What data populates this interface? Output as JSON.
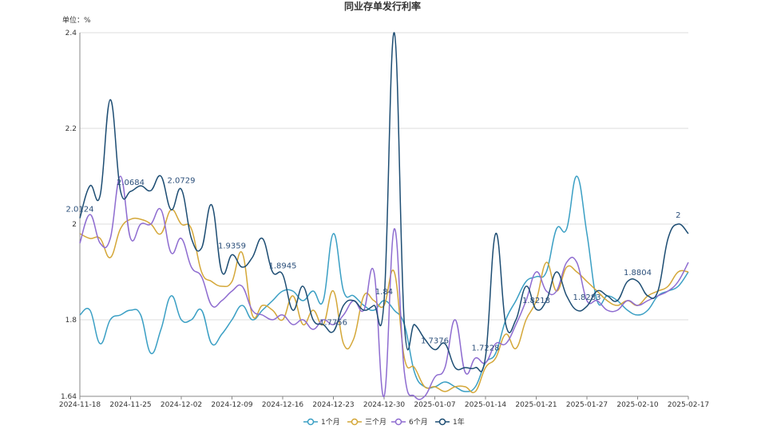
{
  "chart_data": {
    "type": "line",
    "title": "同业存单发行利率",
    "y_label": "单位：%",
    "categories": [
      "2024-11-18",
      null,
      null,
      null,
      null,
      "2024-11-25",
      null,
      null,
      null,
      null,
      "2024-12-02",
      null,
      null,
      null,
      null,
      "2024-12-09",
      null,
      null,
      null,
      null,
      "2024-12-16",
      null,
      null,
      null,
      null,
      "2024-12-23",
      null,
      null,
      null,
      null,
      "2024-12-30",
      null,
      null,
      null,
      null,
      "2025-01-07",
      null,
      null,
      null,
      null,
      "2025-01-14",
      null,
      null,
      null,
      null,
      "2025-01-21",
      null,
      null,
      null,
      null,
      "2025-01-27",
      null,
      null,
      null,
      null,
      "2025-02-10",
      null,
      null,
      null,
      null,
      "2025-02-17"
    ],
    "ylim": [
      1.64,
      2.4
    ],
    "yticks": [
      1.64,
      1.8,
      2,
      2.2,
      2.4
    ],
    "grid": true,
    "series": [
      {
        "name": "1个月",
        "color": "#3a9fc4",
        "values": [
          1.81,
          1.82,
          1.75,
          1.8,
          1.81,
          1.82,
          1.81,
          1.73,
          1.78,
          1.85,
          1.8,
          1.8,
          1.82,
          1.75,
          1.77,
          1.8,
          1.83,
          1.8,
          1.82,
          1.84,
          1.86,
          1.86,
          1.84,
          1.86,
          1.84,
          1.98,
          1.86,
          1.85,
          1.83,
          1.82,
          1.84,
          1.82,
          1.79,
          1.69,
          1.66,
          1.66,
          1.67,
          1.66,
          1.65,
          1.66,
          1.71,
          1.73,
          1.8,
          1.84,
          1.88,
          1.89,
          1.9,
          1.99,
          1.99,
          2.1,
          1.98,
          1.84,
          1.85,
          1.84,
          1.82,
          1.81,
          1.82,
          1.85,
          1.86,
          1.87,
          1.9
        ]
      },
      {
        "name": "三个月",
        "color": "#d4a738",
        "values": [
          1.98,
          1.97,
          1.97,
          1.93,
          1.99,
          2.01,
          2.01,
          2.0,
          1.98,
          2.03,
          2.0,
          1.99,
          1.9,
          1.88,
          1.87,
          1.88,
          1.94,
          1.81,
          1.83,
          1.82,
          1.8,
          1.85,
          1.79,
          1.82,
          1.79,
          1.86,
          1.75,
          1.76,
          1.85,
          1.84,
          1.83,
          1.9,
          1.72,
          1.7,
          1.66,
          1.66,
          1.65,
          1.66,
          1.66,
          1.65,
          1.7,
          1.72,
          1.77,
          1.74,
          1.8,
          1.84,
          1.92,
          1.86,
          1.91,
          1.9,
          1.88,
          1.86,
          1.84,
          1.83,
          1.84,
          1.83,
          1.85,
          1.86,
          1.87,
          1.9,
          1.9
        ]
      },
      {
        "name": "6个月",
        "color": "#8e6cd0",
        "values": [
          1.96,
          2.02,
          1.96,
          1.97,
          2.1,
          1.97,
          2.0,
          2.0,
          2.03,
          1.94,
          1.97,
          1.91,
          1.89,
          1.83,
          1.84,
          1.86,
          1.87,
          1.82,
          1.81,
          1.8,
          1.81,
          1.79,
          1.8,
          1.78,
          1.8,
          1.79,
          1.81,
          1.84,
          1.82,
          1.9,
          1.64,
          1.99,
          1.69,
          1.64,
          1.64,
          1.68,
          1.7,
          1.8,
          1.69,
          1.72,
          1.71,
          1.75,
          1.75,
          1.79,
          1.84,
          1.9,
          1.86,
          1.86,
          1.92,
          1.92,
          1.84,
          1.84,
          1.82,
          1.82,
          1.84,
          1.83,
          1.84,
          1.85,
          1.86,
          1.88,
          1.92
        ]
      },
      {
        "name": "1年",
        "color": "#1d4d73",
        "values": [
          2.0124,
          2.08,
          2.06,
          2.26,
          2.07,
          2.0684,
          2.08,
          2.07,
          2.1,
          2.03,
          2.0729,
          1.97,
          1.95,
          2.04,
          1.9,
          1.9359,
          1.91,
          1.93,
          1.97,
          1.9,
          1.8945,
          1.82,
          1.87,
          1.8,
          1.79,
          1.7756,
          1.83,
          1.84,
          1.82,
          1.83,
          1.84,
          2.4,
          1.79,
          1.79,
          1.76,
          1.7376,
          1.75,
          1.7,
          1.7,
          1.7,
          1.7228,
          1.98,
          1.79,
          1.8,
          1.87,
          1.8218,
          1.84,
          1.9,
          1.85,
          1.82,
          1.8283,
          1.86,
          1.85,
          1.84,
          1.88,
          1.8804,
          1.85,
          1.86,
          1.97,
          2,
          1.98
        ],
        "value_labels": [
          "2.0124",
          null,
          null,
          null,
          null,
          "2.0684",
          null,
          null,
          null,
          null,
          "2.0729",
          null,
          null,
          null,
          null,
          "1.9359",
          null,
          null,
          null,
          null,
          "1.8945",
          null,
          null,
          null,
          null,
          "1.7756",
          null,
          null,
          null,
          null,
          "1.84",
          null,
          null,
          null,
          null,
          "1.7376",
          null,
          null,
          null,
          null,
          "1.7228",
          null,
          null,
          null,
          null,
          "1.8218",
          null,
          null,
          null,
          null,
          "1.8283",
          null,
          null,
          null,
          null,
          "1.8804",
          null,
          null,
          null,
          "2",
          null
        ]
      }
    ]
  }
}
